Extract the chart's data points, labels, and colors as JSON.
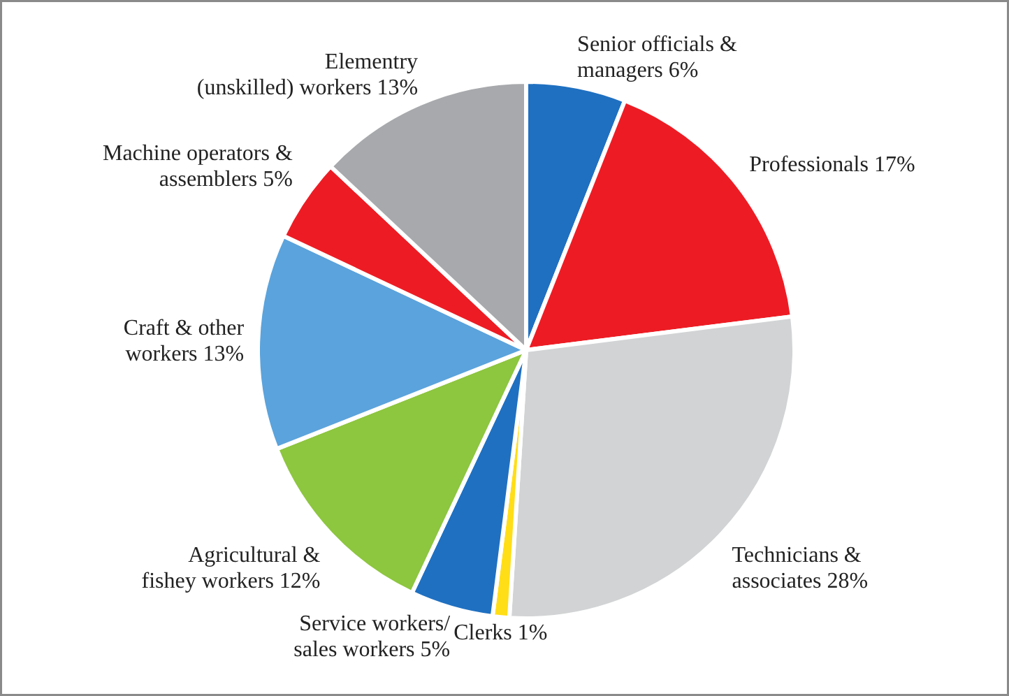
{
  "chart_data": {
    "type": "pie",
    "categories": [
      "Senior officials & managers",
      "Professionals",
      "Technicians & associates",
      "Clerks",
      "Service workers/ sales workers",
      "Agricultural & fishey workers",
      "Craft & other workers",
      "Machine operators & assemblers",
      "Elementry (unskilled) workers"
    ],
    "values": [
      6,
      17,
      28,
      1,
      5,
      12,
      13,
      5,
      13
    ],
    "value_labels": [
      "6%",
      "17%",
      "28%",
      "1%",
      "5%",
      "12%",
      "13%",
      "5%",
      "13%"
    ],
    "colors": [
      "#1f70c1",
      "#ed1c24",
      "#d1d3d4",
      "#ffde17",
      "#1f70c1",
      "#8dc63f",
      "#5ba3dc",
      "#ed1c24",
      "#a7a9ac"
    ]
  }
}
